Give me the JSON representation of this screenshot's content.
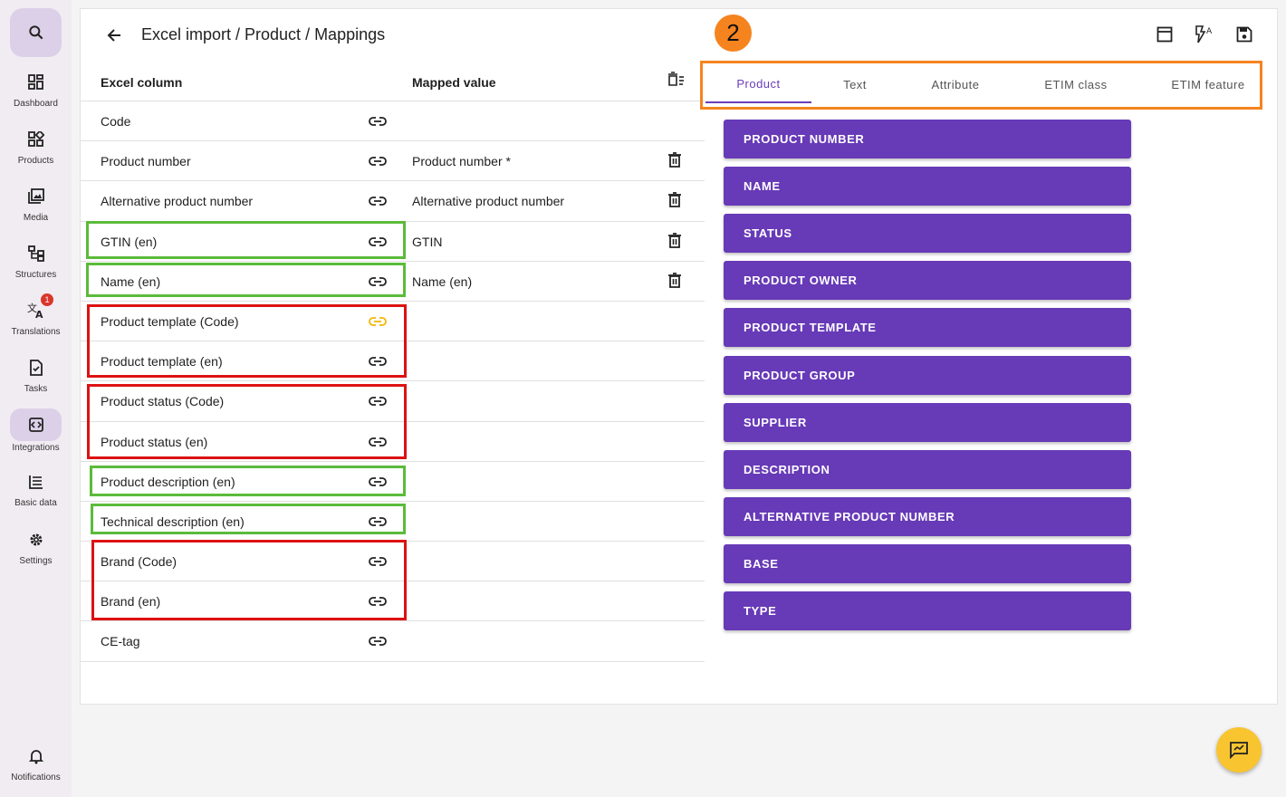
{
  "sidebar": {
    "items": [
      {
        "label": "Dashboard"
      },
      {
        "label": "Products"
      },
      {
        "label": "Media"
      },
      {
        "label": "Structures"
      },
      {
        "label": "Translations",
        "badge": "1"
      },
      {
        "label": "Tasks"
      },
      {
        "label": "Integrations"
      },
      {
        "label": "Basic data"
      },
      {
        "label": "Settings"
      }
    ],
    "notifications": "Notifications"
  },
  "header": {
    "title": "Excel import / Product / Mappings"
  },
  "step_badge": "2",
  "table": {
    "col_excel": "Excel column",
    "col_mapped": "Mapped value",
    "rows": [
      {
        "name": "Code",
        "mapped": ""
      },
      {
        "name": "Product number",
        "mapped": "Product number  *"
      },
      {
        "name": "Alternative product number",
        "mapped": "Alternative product number"
      },
      {
        "name": "GTIN (en)",
        "mapped": "GTIN"
      },
      {
        "name": "Name (en)",
        "mapped": "Name (en)"
      },
      {
        "name": "Product template (Code)",
        "mapped": "",
        "link_color": "#f2b600"
      },
      {
        "name": "Product template (en)",
        "mapped": ""
      },
      {
        "name": "Product status (Code)",
        "mapped": ""
      },
      {
        "name": "Product status (en)",
        "mapped": ""
      },
      {
        "name": "Product description (en)",
        "mapped": ""
      },
      {
        "name": "Technical description (en)",
        "mapped": ""
      },
      {
        "name": "Brand (Code)",
        "mapped": ""
      },
      {
        "name": "Brand (en)",
        "mapped": ""
      },
      {
        "name": "CE-tag",
        "mapped": ""
      }
    ]
  },
  "tabs": [
    "Product",
    "Text",
    "Attribute",
    "ETIM class",
    "ETIM feature"
  ],
  "fields": [
    "PRODUCT NUMBER",
    "NAME",
    "STATUS",
    "PRODUCT OWNER",
    "PRODUCT TEMPLATE",
    "PRODUCT GROUP",
    "SUPPLIER",
    "DESCRIPTION",
    "ALTERNATIVE PRODUCT NUMBER",
    "BASE",
    "TYPE"
  ],
  "colors": {
    "accent": "#673ab7",
    "highlight_green": "#5bbb3b",
    "highlight_red": "#dd1212",
    "highlight_orange": "#f5841f",
    "fab": "#f8c430"
  }
}
